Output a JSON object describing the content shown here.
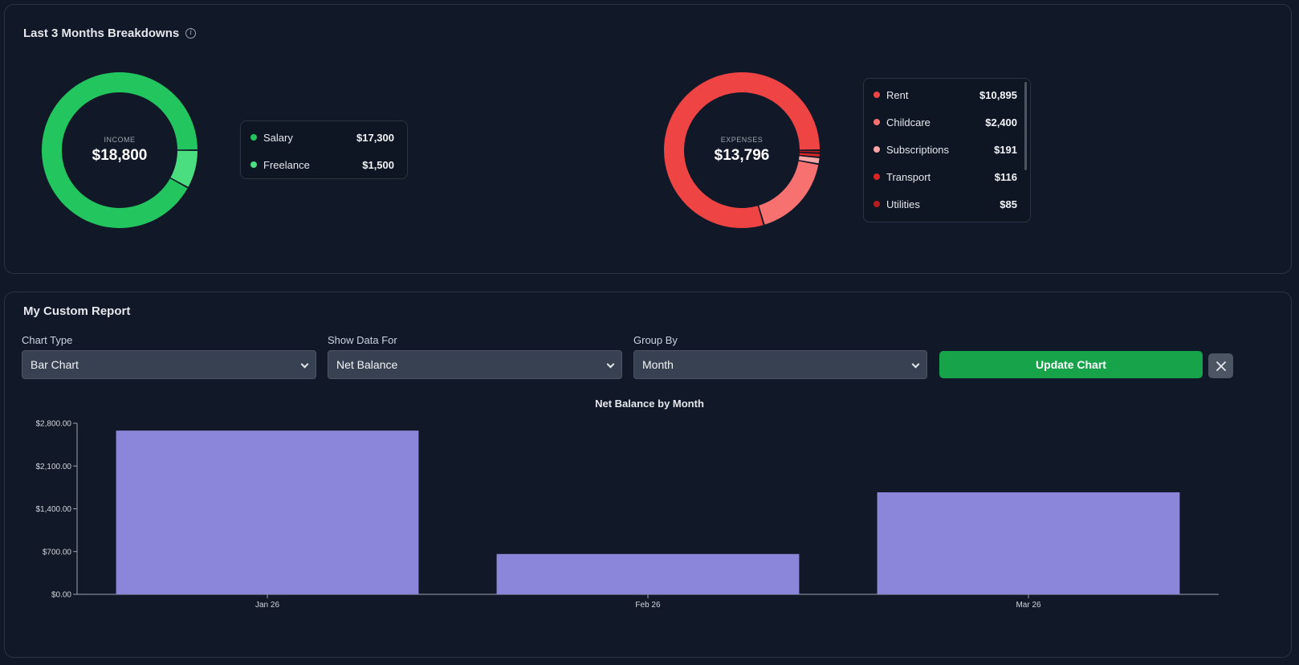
{
  "breakdowns": {
    "title": "Last 3 Months Breakdowns",
    "income": {
      "label": "INCOME",
      "total": "$18,800",
      "items": [
        {
          "name": "Salary",
          "value": "$17,300",
          "amount": 17300,
          "color": "#22c55e"
        },
        {
          "name": "Freelance",
          "value": "$1,500",
          "amount": 1500,
          "color": "#4ade80"
        }
      ]
    },
    "expenses": {
      "label": "EXPENSES",
      "total": "$13,796",
      "items": [
        {
          "name": "Rent",
          "value": "$10,895",
          "amount": 10895,
          "color": "#ef4444"
        },
        {
          "name": "Childcare",
          "value": "$2,400",
          "amount": 2400,
          "color": "#f87171"
        },
        {
          "name": "Subscriptions",
          "value": "$191",
          "amount": 191,
          "color": "#fca5a5"
        },
        {
          "name": "Transport",
          "value": "$116",
          "amount": 116,
          "color": "#dc2626"
        },
        {
          "name": "Utilities",
          "value": "$85",
          "amount": 85,
          "color": "#b91c1c"
        }
      ]
    }
  },
  "report": {
    "title": "My Custom Report",
    "chart_type": {
      "label": "Chart Type",
      "value": "Bar Chart"
    },
    "show_data_for": {
      "label": "Show Data For",
      "value": "Net Balance"
    },
    "group_by": {
      "label": "Group By",
      "value": "Month"
    },
    "update_label": "Update Chart",
    "close_icon": "close-icon"
  },
  "chart_data": {
    "type": "bar",
    "title": "Net Balance by Month",
    "categories": [
      "Jan 26",
      "Feb 26",
      "Mar 26"
    ],
    "values": [
      2680,
      660,
      1670
    ],
    "ylim": [
      0,
      2800
    ],
    "yticks": [
      0,
      700,
      1400,
      2100,
      2800
    ],
    "ytick_labels": [
      "$0.00",
      "$700.00",
      "$1,400.00",
      "$2,100.00",
      "$2,800.00"
    ],
    "bar_color": "#8b86d9",
    "grid": false,
    "legend": "none",
    "xlabel": "",
    "ylabel": ""
  }
}
